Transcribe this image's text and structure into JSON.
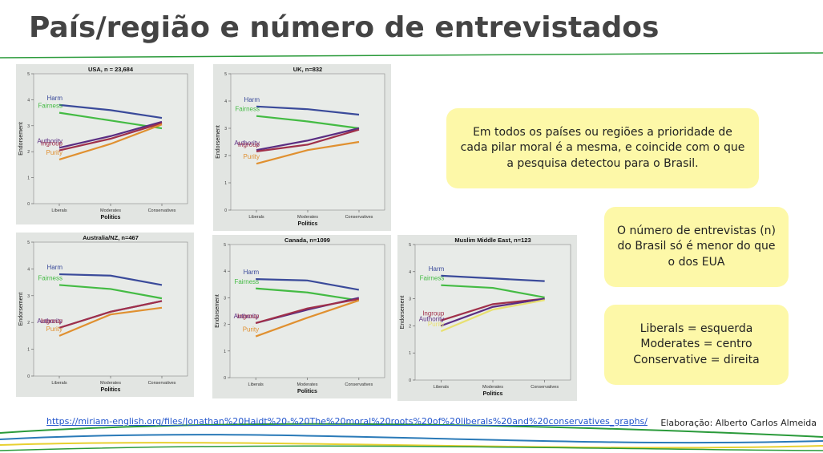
{
  "title": "País/região e número de entrevistados",
  "chart_data": [
    {
      "type": "line",
      "title": "USA, n = 23,684",
      "xlabel": "Politics",
      "ylabel": "Endorsement",
      "categories": [
        "Liberals",
        "Moderates",
        "Conservatives"
      ],
      "ylim": [
        0,
        5
      ],
      "yticks": [
        0,
        1,
        2,
        3,
        4,
        5
      ],
      "series": [
        {
          "name": "Harm",
          "color": "#3a4a9a",
          "values": [
            3.8,
            3.6,
            3.3
          ]
        },
        {
          "name": "Fairness",
          "color": "#44bb44",
          "values": [
            3.5,
            3.2,
            2.9
          ]
        },
        {
          "name": "Authority",
          "color": "#5a2d82",
          "values": [
            2.15,
            2.6,
            3.15
          ]
        },
        {
          "name": "Ingroup",
          "color": "#a0304a",
          "values": [
            2.05,
            2.5,
            3.1
          ]
        },
        {
          "name": "Purity",
          "color": "#e09030",
          "values": [
            1.7,
            2.3,
            3.05
          ]
        }
      ]
    },
    {
      "type": "line",
      "title": "UK, n=832",
      "xlabel": "Politics",
      "ylabel": "Endorsement",
      "categories": [
        "Liberals",
        "Moderates",
        "Conservatives"
      ],
      "ylim": [
        0,
        5
      ],
      "yticks": [
        0,
        1,
        2,
        3,
        4,
        5
      ],
      "series": [
        {
          "name": "Harm",
          "color": "#3a4a9a",
          "values": [
            3.8,
            3.7,
            3.5
          ]
        },
        {
          "name": "Fairness",
          "color": "#44bb44",
          "values": [
            3.45,
            3.25,
            3.0
          ]
        },
        {
          "name": "Authority",
          "color": "#5a2d82",
          "values": [
            2.2,
            2.55,
            3.0
          ]
        },
        {
          "name": "Ingroup",
          "color": "#a0304a",
          "values": [
            2.15,
            2.4,
            2.95
          ]
        },
        {
          "name": "Purity",
          "color": "#e09030",
          "values": [
            1.7,
            2.2,
            2.5
          ]
        }
      ]
    },
    {
      "type": "line",
      "title": "Australia/NZ, n=467",
      "xlabel": "Politics",
      "ylabel": "Endorsement",
      "categories": [
        "Liberals",
        "Moderates",
        "Conservatives"
      ],
      "ylim": [
        0,
        5
      ],
      "yticks": [
        0,
        1,
        2,
        3,
        4,
        5
      ],
      "series": [
        {
          "name": "Harm",
          "color": "#3a4a9a",
          "values": [
            3.8,
            3.75,
            3.4
          ]
        },
        {
          "name": "Fairness",
          "color": "#44bb44",
          "values": [
            3.4,
            3.25,
            2.9
          ]
        },
        {
          "name": "Authority",
          "color": "#5a2d82",
          "values": [
            1.8,
            2.4,
            2.8
          ]
        },
        {
          "name": "Ingroup",
          "color": "#a0304a",
          "values": [
            1.8,
            2.4,
            2.8
          ]
        },
        {
          "name": "Purity",
          "color": "#e09030",
          "values": [
            1.5,
            2.3,
            2.55
          ]
        }
      ]
    },
    {
      "type": "line",
      "title": "Canada, n=1099",
      "xlabel": "Politics",
      "ylabel": "Endorsement",
      "categories": [
        "Liberals",
        "Moderates",
        "Conservatives"
      ],
      "ylim": [
        0,
        5
      ],
      "yticks": [
        0,
        1,
        2,
        3,
        4,
        5
      ],
      "series": [
        {
          "name": "Harm",
          "color": "#3a4a9a",
          "values": [
            3.7,
            3.65,
            3.3
          ]
        },
        {
          "name": "Fairness",
          "color": "#44bb44",
          "values": [
            3.35,
            3.2,
            2.9
          ]
        },
        {
          "name": "Authority",
          "color": "#5a2d82",
          "values": [
            2.05,
            2.55,
            3.0
          ]
        },
        {
          "name": "Ingroup",
          "color": "#a0304a",
          "values": [
            2.05,
            2.6,
            2.95
          ]
        },
        {
          "name": "Purity",
          "color": "#e09030",
          "values": [
            1.55,
            2.25,
            2.9
          ]
        }
      ]
    },
    {
      "type": "line",
      "title": "Muslim Middle East, n=123",
      "xlabel": "Politics",
      "ylabel": "Endorsement",
      "categories": [
        "Liberals",
        "Moderates",
        "Conservatives"
      ],
      "ylim": [
        0,
        5
      ],
      "yticks": [
        0,
        1,
        2,
        3,
        4,
        5
      ],
      "series": [
        {
          "name": "Harm",
          "color": "#3a4a9a",
          "values": [
            3.85,
            3.75,
            3.65
          ]
        },
        {
          "name": "Fairness",
          "color": "#44bb44",
          "values": [
            3.5,
            3.4,
            3.05
          ]
        },
        {
          "name": "Ingroup",
          "color": "#a0304a",
          "values": [
            2.2,
            2.8,
            3.0
          ]
        },
        {
          "name": "Authority",
          "color": "#5a2d82",
          "values": [
            2.0,
            2.7,
            3.0
          ]
        },
        {
          "name": "Purity",
          "color": "#e8e070",
          "values": [
            1.8,
            2.6,
            2.95
          ]
        }
      ]
    }
  ],
  "notes": [
    {
      "text": "Em todos os países ou regiões a prioridade de cada pilar moral é a mesma, e coincide com o que a pesquisa detectou para o Brasil."
    },
    {
      "text": "O número de entrevistas (n) do Brasil só é menor do que o dos EUA"
    },
    {
      "lines": [
        "Liberals = esquerda",
        "Moderates = centro",
        "Conservative = direita"
      ]
    }
  ],
  "link": "https://miriam-english.org/files/Jonathan%20Haidt%20-%20The%20moral%20roots%20of%20liberals%20and%20conservatives_graphs/",
  "credit": "Elaboração: Alberto Carlos Almeida"
}
